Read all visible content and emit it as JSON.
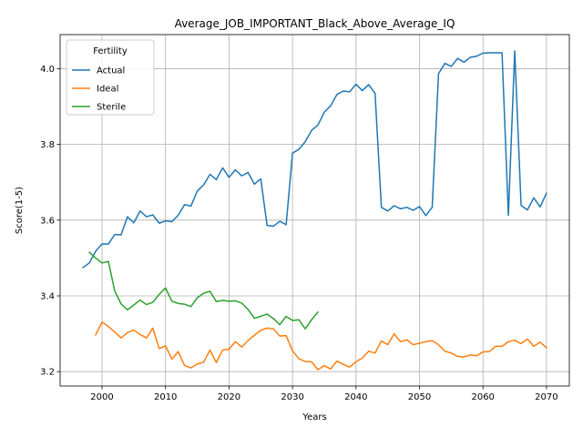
{
  "chart_data": {
    "type": "line",
    "title": "Average_JOB_IMPORTANT_Black_Above_Average_IQ",
    "xlabel": "Years",
    "ylabel": "Score(1-5)",
    "xlim": [
      1993.4,
      2073.6
    ],
    "ylim": [
      3.162,
      4.09
    ],
    "xticks": [
      2000,
      2010,
      2020,
      2030,
      2040,
      2050,
      2060,
      2070
    ],
    "yticks": [
      3.2,
      3.4,
      3.6,
      3.8,
      4.0
    ],
    "ytick_labels": [
      "3.2",
      "3.4",
      "3.6",
      "3.8",
      "4.0"
    ],
    "grid": true,
    "legend": {
      "title": "Fertility",
      "position": "upper-left"
    },
    "series": [
      {
        "name": "Actual",
        "color": "#1f77b4",
        "x": [
          1997,
          1998,
          1999,
          2000,
          2001,
          2002,
          2003,
          2004,
          2005,
          2006,
          2007,
          2008,
          2009,
          2010,
          2011,
          2012,
          2013,
          2014,
          2015,
          2016,
          2017,
          2018,
          2019,
          2020,
          2021,
          2022,
          2023,
          2024,
          2025,
          2026,
          2027,
          2028,
          2029,
          2030,
          2031,
          2032,
          2033,
          2034,
          2035,
          2036,
          2037,
          2038,
          2039,
          2040,
          2041,
          2042,
          2043,
          2044,
          2045,
          2046,
          2047,
          2048,
          2049,
          2050,
          2051,
          2052,
          2053,
          2054,
          2055,
          2056,
          2057,
          2058,
          2059,
          2060,
          2061,
          2062,
          2063,
          2064,
          2065,
          2066,
          2067,
          2068,
          2069,
          2070
        ],
        "y": [
          3.475,
          3.487,
          3.518,
          3.537,
          3.537,
          3.562,
          3.561,
          3.609,
          3.593,
          3.624,
          3.609,
          3.614,
          3.592,
          3.598,
          3.596,
          3.613,
          3.641,
          3.637,
          3.677,
          3.693,
          3.721,
          3.707,
          3.738,
          3.713,
          3.733,
          3.717,
          3.726,
          3.695,
          3.709,
          3.586,
          3.584,
          3.597,
          3.588,
          3.777,
          3.787,
          3.807,
          3.837,
          3.851,
          3.885,
          3.902,
          3.932,
          3.941,
          3.939,
          3.959,
          3.942,
          3.958,
          3.935,
          3.634,
          3.624,
          3.638,
          3.63,
          3.634,
          3.626,
          3.636,
          3.612,
          3.634,
          3.987,
          4.014,
          4.006,
          4.027,
          4.017,
          4.03,
          4.033,
          4.041,
          4.042,
          4.042,
          4.042,
          3.613,
          4.047,
          3.639,
          3.627,
          3.659,
          3.635,
          3.671
        ]
      },
      {
        "name": "Ideal",
        "color": "#ff7f0e",
        "x": [
          1999,
          2000,
          2001,
          2002,
          2003,
          2004,
          2005,
          2006,
          2007,
          2008,
          2009,
          2010,
          2011,
          2012,
          2013,
          2014,
          2015,
          2016,
          2017,
          2018,
          2019,
          2020,
          2021,
          2022,
          2023,
          2024,
          2025,
          2026,
          2027,
          2028,
          2029,
          2030,
          2031,
          2032,
          2033,
          2034,
          2035,
          2036,
          2037,
          2038,
          2039,
          2040,
          2041,
          2042,
          2043,
          2044,
          2045,
          2046,
          2047,
          2048,
          2049,
          2050,
          2051,
          2052,
          2053,
          2054,
          2055,
          2056,
          2057,
          2058,
          2059,
          2060,
          2061,
          2062,
          2063,
          2064,
          2065,
          2066,
          2067,
          2068,
          2069,
          2070
        ],
        "y": [
          3.297,
          3.331,
          3.319,
          3.305,
          3.289,
          3.303,
          3.31,
          3.298,
          3.289,
          3.315,
          3.261,
          3.268,
          3.233,
          3.253,
          3.216,
          3.21,
          3.22,
          3.225,
          3.257,
          3.224,
          3.257,
          3.259,
          3.279,
          3.265,
          3.282,
          3.296,
          3.309,
          3.315,
          3.313,
          3.294,
          3.295,
          3.255,
          3.234,
          3.227,
          3.226,
          3.205,
          3.216,
          3.207,
          3.228,
          3.219,
          3.212,
          3.226,
          3.236,
          3.254,
          3.249,
          3.281,
          3.271,
          3.3,
          3.279,
          3.284,
          3.271,
          3.275,
          3.279,
          3.282,
          3.271,
          3.254,
          3.249,
          3.24,
          3.239,
          3.244,
          3.242,
          3.252,
          3.253,
          3.267,
          3.267,
          3.279,
          3.283,
          3.274,
          3.286,
          3.267,
          3.278,
          3.263
        ]
      },
      {
        "name": "Sterile",
        "color": "#2ca02c",
        "x": [
          1998,
          1999,
          2000,
          2001,
          2002,
          2003,
          2004,
          2005,
          2006,
          2007,
          2008,
          2009,
          2010,
          2011,
          2012,
          2013,
          2014,
          2015,
          2016,
          2017,
          2018,
          2019,
          2020,
          2021,
          2022,
          2023,
          2024,
          2025,
          2026,
          2027,
          2028,
          2029,
          2030,
          2031,
          2032,
          2033,
          2034
        ],
        "y": [
          3.515,
          3.5,
          3.487,
          3.491,
          3.413,
          3.379,
          3.363,
          3.376,
          3.389,
          3.377,
          3.383,
          3.404,
          3.421,
          3.386,
          3.38,
          3.378,
          3.372,
          3.395,
          3.407,
          3.412,
          3.385,
          3.388,
          3.386,
          3.387,
          3.381,
          3.364,
          3.341,
          3.346,
          3.352,
          3.34,
          3.324,
          3.346,
          3.335,
          3.337,
          3.313,
          3.337,
          3.357
        ]
      }
    ]
  }
}
